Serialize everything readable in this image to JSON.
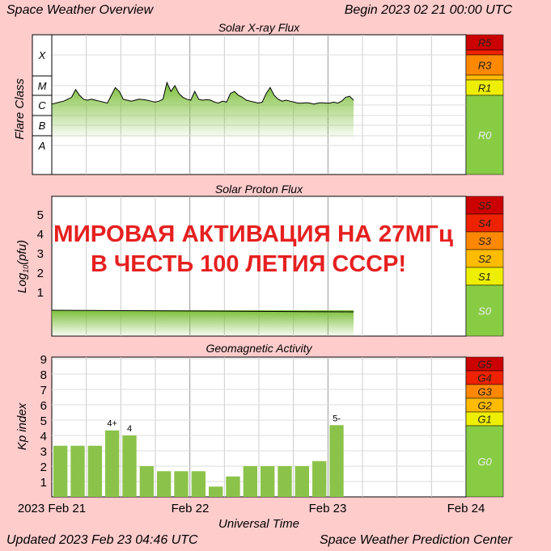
{
  "header": {
    "title": "Space Weather Overview",
    "begin": "Begin 2023 02 21 00:00 UTC"
  },
  "footer": {
    "updated": "Updated 2023 Feb 23 04:46 UTC",
    "center": "Space Weather Prediction Center",
    "xlabel": "Universal Time"
  },
  "overlay": {
    "line1": "МИРОВАЯ АКТИВАЦИЯ НА 27МГц",
    "line2": "В ЧЕСТЬ 100 ЛЕТИЯ СССР!"
  },
  "x_ticks": [
    "2023 Feb 21",
    "Feb 22",
    "Feb 23",
    "Feb 24"
  ],
  "colors": {
    "bg": "#ffcccc",
    "panel": "#ffffff",
    "grid": "#bbbbbb",
    "fill": "#8bc34a",
    "r5": "#cc0000",
    "r4": "#ee2200",
    "r3": "#ff8800",
    "r2": "#ffbb00",
    "r1": "#eeee00",
    "r0": "#88cc44",
    "overlay": "#e62020"
  },
  "scales": {
    "xray": {
      "title": "Solar X-ray Flux",
      "ylabel": "Flare Class",
      "classes": [
        "X",
        "M",
        "C",
        "B",
        "A"
      ],
      "levels": [
        "R5",
        "R3",
        "R1",
        "R0"
      ]
    },
    "proton": {
      "title": "Solar Proton Flux",
      "ylabel": "Log",
      "ylabel_sub": "10",
      "ylabel_unit": "(pfu)",
      "ticks": [
        "5",
        "4",
        "3",
        "2",
        "1"
      ],
      "levels": [
        "S5",
        "S4",
        "S3",
        "S2",
        "S1",
        "S0"
      ]
    },
    "geomag": {
      "title": "Geomagnetic Activity",
      "ylabel": "Kp index",
      "ticks": [
        "9",
        "8",
        "7",
        "6",
        "5",
        "4",
        "3",
        "2",
        "1"
      ],
      "levels": [
        "G5",
        "G4",
        "G3",
        "G2",
        "G1",
        "G0"
      ]
    }
  },
  "chart_data": [
    {
      "type": "area",
      "title": "Solar X-ray Flux",
      "ylabel": "Flare Class",
      "x_unit": "hours since 2023 Feb 21 00:00 UTC",
      "x": [
        0,
        1,
        2,
        3,
        4,
        5,
        6,
        7,
        8,
        9,
        10,
        11,
        12,
        13,
        14,
        15,
        16,
        17,
        18,
        19,
        20,
        21,
        22,
        23,
        24,
        25,
        26,
        27,
        28,
        29,
        30,
        31,
        32,
        33,
        34,
        35,
        36,
        37,
        38,
        39,
        40,
        41,
        42,
        43,
        44,
        45,
        46,
        47,
        48,
        49,
        50,
        51,
        52,
        53,
        54,
        55,
        56,
        57,
        58,
        59,
        60,
        61,
        62,
        63,
        64,
        65,
        66,
        67,
        68,
        69,
        70,
        71,
        72,
        73,
        74,
        75,
        76
      ],
      "y_log": [
        -5.95,
        -5.9,
        -5.85,
        -5.8,
        -5.7,
        -5.6,
        -5.2,
        -5.5,
        -5.7,
        -5.75,
        -5.7,
        -5.75,
        -5.8,
        -5.85,
        -5.9,
        -5.5,
        -5.1,
        -5.3,
        -5.7,
        -5.75,
        -5.8,
        -5.75,
        -5.7,
        -5.72,
        -5.75,
        -5.8,
        -5.85,
        -5.8,
        -5.7,
        -4.9,
        -5.3,
        -5.0,
        -5.4,
        -5.6,
        -5.7,
        -5.75,
        -5.3,
        -5.7,
        -5.75,
        -5.72,
        -5.75,
        -5.85,
        -5.9,
        -5.8,
        -5.85,
        -5.4,
        -5.3,
        -5.5,
        -5.6,
        -5.75,
        -5.8,
        -5.85,
        -5.9,
        -5.85,
        -5.4,
        -5.1,
        -5.5,
        -5.7,
        -5.8,
        -5.75,
        -5.8,
        -5.85,
        -5.9,
        -5.9,
        -5.88,
        -5.9,
        -5.95,
        -5.9,
        -5.88,
        -5.9,
        -5.9,
        -5.85,
        -5.9,
        -5.8,
        -5.6,
        -5.55,
        -5.75
      ],
      "y_classes": [
        "A",
        "B",
        "C",
        "M",
        "X"
      ]
    },
    {
      "type": "area",
      "title": "Solar Proton Flux",
      "ylabel": "Log10(pfu)",
      "ylim": [
        -0.5,
        5.5
      ],
      "x": [
        0,
        76
      ],
      "y": [
        -0.2,
        -0.25
      ]
    },
    {
      "type": "bar",
      "title": "Geomagnetic Activity",
      "ylabel": "Kp index",
      "xlabel": "Universal Time",
      "ylim": [
        0,
        10
      ],
      "bar_hours": 3,
      "values": [
        3.33,
        3.33,
        3.33,
        4.33,
        4,
        2,
        1.67,
        1.67,
        1.67,
        0.67,
        1.33,
        2,
        2,
        2,
        2,
        2.33,
        4.67
      ],
      "labels": [
        "",
        "",
        "",
        "4+",
        "4",
        "",
        "",
        "",
        "",
        "",
        "",
        "",
        "",
        "",
        "",
        "",
        "5-"
      ]
    }
  ]
}
